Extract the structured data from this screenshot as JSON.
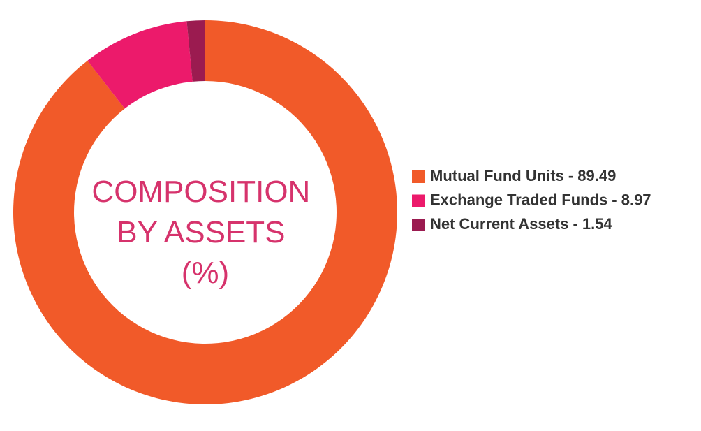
{
  "chart_data": {
    "type": "donut",
    "title": [
      "COMPOSITION",
      "BY ASSETS",
      "(%)"
    ],
    "categories": [
      "Mutual Fund Units",
      "Exchange Traded Funds",
      "Net Current Assets"
    ],
    "values": [
      89.49,
      8.97,
      1.54
    ],
    "value_labels": [
      "- 89.49",
      "- 8.97",
      "- 1.54"
    ],
    "colors": [
      "#f15a29",
      "#ec1a6b",
      "#9b1b50"
    ],
    "legend": "right"
  }
}
